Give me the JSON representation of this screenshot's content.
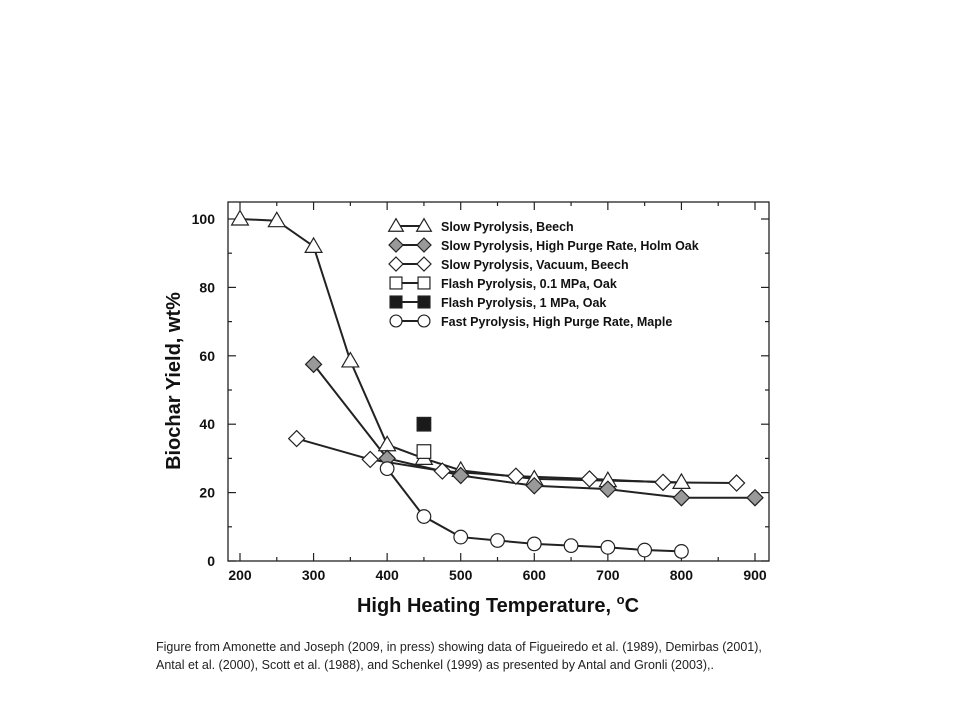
{
  "chart_data": {
    "type": "line",
    "xlabel": "High Heating Temperature, ",
    "xlabel_unit": "oC",
    "ylabel": "Biochar Yield, wt%",
    "xlim": [
      180,
      920
    ],
    "ylim": [
      0,
      105
    ],
    "x_ticks": [
      200,
      300,
      400,
      500,
      600,
      700,
      800,
      900
    ],
    "y_ticks": [
      0,
      20,
      40,
      60,
      80,
      100
    ],
    "legend_position": "top-right",
    "series": [
      {
        "name": "Slow Pyrolysis, Beech",
        "marker": "triangle",
        "fill": "#ffffff",
        "line": true,
        "points": [
          [
            200,
            100
          ],
          [
            250,
            99.5
          ],
          [
            300,
            92
          ],
          [
            350,
            58.5
          ],
          [
            400,
            34
          ],
          [
            450,
            30
          ],
          [
            500,
            26.5
          ],
          [
            600,
            24
          ],
          [
            700,
            23.5
          ],
          [
            800,
            23
          ]
        ]
      },
      {
        "name": "Slow Pyrolysis, High Purge Rate, Holm Oak",
        "marker": "diamond",
        "fill": "#999999",
        "line": true,
        "points": [
          [
            300,
            57.5
          ],
          [
            400,
            30
          ],
          [
            500,
            25
          ],
          [
            600,
            22
          ],
          [
            700,
            21
          ],
          [
            800,
            18.5
          ],
          [
            900,
            18.5
          ]
        ]
      },
      {
        "name": "Slow Pyrolysis, Vacuum, Beech",
        "marker": "diamond",
        "fill": "#ffffff",
        "line": true,
        "points": [
          [
            277,
            35.8
          ],
          [
            377,
            29.7
          ],
          [
            475,
            26.3
          ],
          [
            575,
            24.8
          ],
          [
            675,
            24
          ],
          [
            775,
            23
          ],
          [
            875,
            22.8
          ]
        ]
      },
      {
        "name": "Flash Pyrolysis, 0.1 MPa, Oak",
        "marker": "square",
        "fill": "#ffffff",
        "line": false,
        "points": [
          [
            450,
            32
          ]
        ]
      },
      {
        "name": "Flash Pyrolysis, 1 MPa, Oak",
        "marker": "square",
        "fill": "#1a1a1a",
        "line": false,
        "points": [
          [
            450,
            40
          ]
        ]
      },
      {
        "name": "Fast Pyrolysis, High Purge Rate, Maple",
        "marker": "circle",
        "fill": "#ffffff",
        "line": true,
        "points": [
          [
            400,
            27
          ],
          [
            450,
            13
          ],
          [
            500,
            7
          ],
          [
            550,
            6
          ],
          [
            600,
            5
          ],
          [
            650,
            4.5
          ],
          [
            700,
            4
          ],
          [
            750,
            3.2
          ],
          [
            800,
            2.8
          ]
        ]
      }
    ]
  },
  "caption": {
    "line1": "Figure from Amonette and Joseph (2009, in press) showing data of Figueiredo et al. (1989), Demirbas (2001),",
    "line2": "Antal et al. (2000), Scott et al. (1988), and Schenkel (1999) as presented by Antal and Gronli (2003),."
  }
}
